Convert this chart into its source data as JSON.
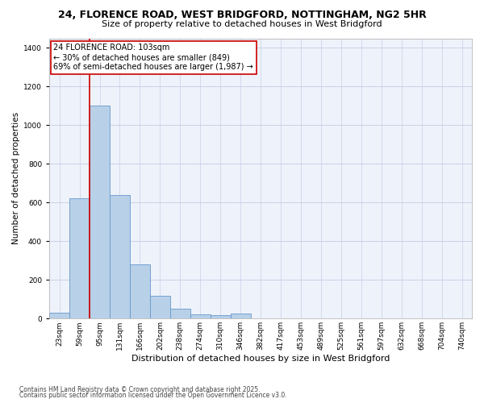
{
  "title_line1": "24, FLORENCE ROAD, WEST BRIDGFORD, NOTTINGHAM, NG2 5HR",
  "title_line2": "Size of property relative to detached houses in West Bridgford",
  "xlabel": "Distribution of detached houses by size in West Bridgford",
  "ylabel": "Number of detached properties",
  "bar_color": "#b8d0e8",
  "bar_edge_color": "#6699cc",
  "bg_color": "#eef2fa",
  "grid_color": "#c8d0e8",
  "annotation_box_text": "24 FLORENCE ROAD: 103sqm\n← 30% of detached houses are smaller (849)\n69% of semi-detached houses are larger (1,987) →",
  "vline_x": 1.5,
  "vline_color": "#cc0000",
  "categories": [
    "23sqm",
    "59sqm",
    "95sqm",
    "131sqm",
    "166sqm",
    "202sqm",
    "238sqm",
    "274sqm",
    "310sqm",
    "346sqm",
    "382sqm",
    "417sqm",
    "453sqm",
    "489sqm",
    "525sqm",
    "561sqm",
    "597sqm",
    "632sqm",
    "668sqm",
    "704sqm",
    "740sqm"
  ],
  "values": [
    30,
    622,
    1100,
    640,
    280,
    120,
    50,
    20,
    18,
    25,
    0,
    0,
    0,
    0,
    0,
    0,
    0,
    0,
    0,
    0,
    0
  ],
  "ylim": [
    0,
    1450
  ],
  "yticks": [
    0,
    200,
    400,
    600,
    800,
    1000,
    1200,
    1400
  ],
  "footer_line1": "Contains HM Land Registry data © Crown copyright and database right 2025.",
  "footer_line2": "Contains public sector information licensed under the Open Government Licence v3.0.",
  "annotation_fontsize": 7,
  "title1_fontsize": 9,
  "title2_fontsize": 8,
  "xlabel_fontsize": 8,
  "ylabel_fontsize": 7.5,
  "tick_fontsize": 6.5,
  "footer_fontsize": 5.5
}
